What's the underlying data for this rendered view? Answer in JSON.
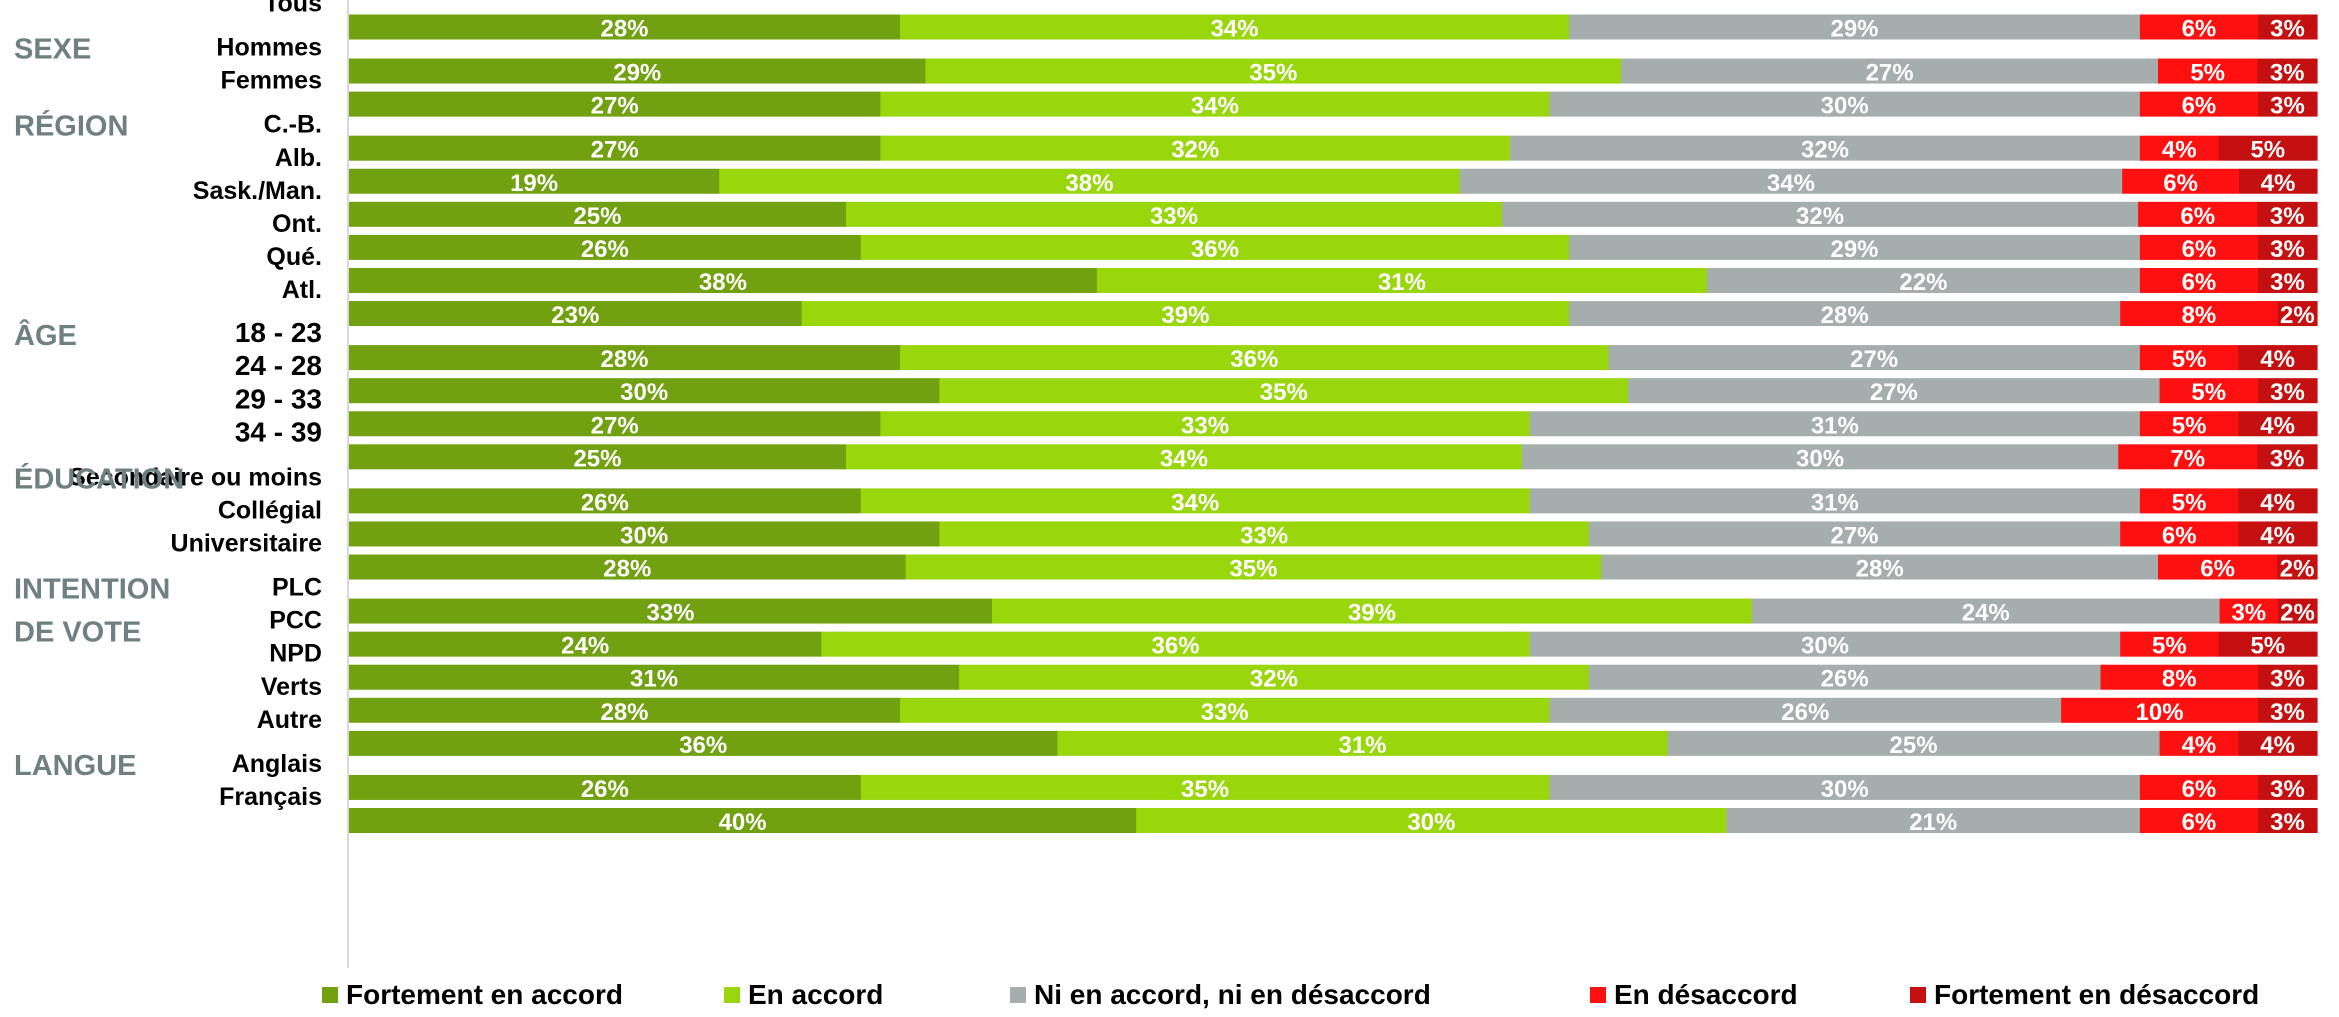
{
  "chart_data": {
    "type": "bar",
    "orientation": "horizontal",
    "stacked": true,
    "value_format": "{v}%",
    "series": [
      {
        "name": "Fortement en accord",
        "color": "#71a010"
      },
      {
        "name": "En accord",
        "color": "#99d60c"
      },
      {
        "name": "Ni en accord, ni en désaccord",
        "color": "#a5adad"
      },
      {
        "name": "En désaccord",
        "color": "#ff1010"
      },
      {
        "name": "Fortement en désaccord",
        "color": "#c41010"
      }
    ],
    "groups": [
      {
        "label": "",
        "label_lines": [],
        "rows": [
          {
            "label": "Tous",
            "values": [
              28,
              34,
              29,
              6,
              3
            ]
          }
        ]
      },
      {
        "label": "SEXE",
        "label_lines": [
          "SEXE"
        ],
        "rows": [
          {
            "label": "Hommes",
            "values": [
              29,
              35,
              27,
              5,
              3
            ]
          },
          {
            "label": "Femmes",
            "values": [
              27,
              34,
              30,
              6,
              3
            ]
          }
        ]
      },
      {
        "label": "RÉGION",
        "label_lines": [
          "RÉGION"
        ],
        "rows": [
          {
            "label": "C.-B.",
            "values": [
              27,
              32,
              32,
              4,
              5
            ]
          },
          {
            "label": "Alb.",
            "values": [
              19,
              38,
              34,
              6,
              4
            ]
          },
          {
            "label": "Sask./Man.",
            "values": [
              25,
              33,
              32,
              6,
              3
            ]
          },
          {
            "label": "Ont.",
            "values": [
              26,
              36,
              29,
              6,
              3
            ]
          },
          {
            "label": "Qué.",
            "values": [
              38,
              31,
              22,
              6,
              3
            ]
          },
          {
            "label": "Atl.",
            "values": [
              23,
              39,
              28,
              8,
              2
            ]
          }
        ]
      },
      {
        "label": "ÂGE",
        "label_lines": [
          "ÂGE"
        ],
        "rows": [
          {
            "label": "18 - 23",
            "values": [
              28,
              36,
              27,
              5,
              4
            ]
          },
          {
            "label": "24 - 28",
            "values": [
              30,
              35,
              27,
              5,
              3
            ]
          },
          {
            "label": "29 - 33",
            "values": [
              27,
              33,
              31,
              5,
              4
            ]
          },
          {
            "label": "34 - 39",
            "values": [
              25,
              34,
              30,
              7,
              3
            ]
          }
        ]
      },
      {
        "label": "ÉDUCATION",
        "label_lines": [
          "ÉDUCATION"
        ],
        "rows": [
          {
            "label": "Secondaire ou moins",
            "values": [
              26,
              34,
              31,
              5,
              4
            ]
          },
          {
            "label": "Collégial",
            "values": [
              30,
              33,
              27,
              6,
              4
            ]
          },
          {
            "label": "Universitaire",
            "values": [
              28,
              35,
              28,
              6,
              2
            ]
          }
        ]
      },
      {
        "label": "INTENTION DE VOTE",
        "label_lines": [
          "INTENTION",
          "DE VOTE"
        ],
        "rows": [
          {
            "label": "PLC",
            "values": [
              33,
              39,
              24,
              3,
              2
            ]
          },
          {
            "label": "PCC",
            "values": [
              24,
              36,
              30,
              5,
              5
            ]
          },
          {
            "label": "NPD",
            "values": [
              31,
              32,
              26,
              8,
              3
            ]
          },
          {
            "label": "Verts",
            "values": [
              28,
              33,
              26,
              10,
              3
            ]
          },
          {
            "label": "Autre",
            "values": [
              36,
              31,
              25,
              4,
              4
            ]
          }
        ]
      },
      {
        "label": "LANGUE",
        "label_lines": [
          "LANGUE"
        ],
        "rows": [
          {
            "label": "Anglais",
            "values": [
              26,
              35,
              30,
              6,
              3
            ]
          },
          {
            "label": "Français",
            "values": [
              40,
              30,
              21,
              6,
              3
            ]
          }
        ]
      }
    ]
  }
}
